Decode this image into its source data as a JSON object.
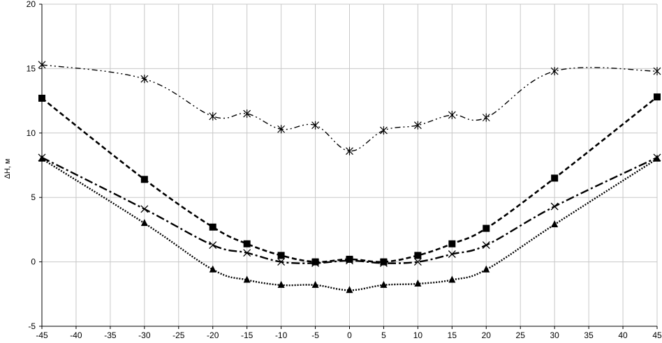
{
  "chart_data": {
    "type": "line",
    "title": "",
    "xlabel": "",
    "ylabel": "ΔH, м",
    "xlim": [
      -45,
      45
    ],
    "ylim": [
      -5,
      20
    ],
    "grid": true,
    "x_ticks": [
      -45,
      -40,
      -35,
      -30,
      -25,
      -20,
      -15,
      -10,
      -5,
      0,
      5,
      10,
      15,
      20,
      25,
      30,
      35,
      40,
      45
    ],
    "y_ticks": [
      -5,
      0,
      5,
      10,
      15,
      20
    ],
    "series": [
      {
        "marker": "asterisk",
        "line_style": "dash-dot-dot",
        "color": "#000000",
        "x": [
          -45,
          -30,
          -20,
          -15,
          -10,
          -5,
          0,
          5,
          10,
          15,
          20,
          30,
          45
        ],
        "y": [
          15.3,
          14.2,
          11.3,
          11.5,
          10.3,
          10.6,
          8.6,
          10.2,
          10.6,
          11.4,
          11.2,
          14.8,
          14.8
        ]
      },
      {
        "marker": "square",
        "line_style": "dashed",
        "color": "#000000",
        "x": [
          -45,
          -30,
          -20,
          -15,
          -10,
          -5,
          0,
          5,
          10,
          15,
          20,
          30,
          45
        ],
        "y": [
          12.7,
          6.4,
          2.7,
          1.4,
          0.5,
          0.0,
          0.2,
          0.0,
          0.5,
          1.4,
          2.6,
          6.5,
          12.8
        ]
      },
      {
        "marker": "x",
        "line_style": "dash-dot",
        "color": "#000000",
        "x": [
          -45,
          -30,
          -20,
          -15,
          -10,
          -5,
          0,
          5,
          10,
          15,
          20,
          30,
          45
        ],
        "y": [
          8.1,
          4.1,
          1.3,
          0.7,
          0.0,
          -0.1,
          0.1,
          -0.1,
          0.0,
          0.6,
          1.3,
          4.3,
          8.1
        ]
      },
      {
        "marker": "triangle",
        "line_style": "dotted",
        "color": "#000000",
        "x": [
          -45,
          -30,
          -20,
          -15,
          -10,
          -5,
          0,
          5,
          10,
          15,
          20,
          30,
          45
        ],
        "y": [
          8.0,
          3.0,
          -0.6,
          -1.4,
          -1.8,
          -1.8,
          -2.2,
          -1.8,
          -1.7,
          -1.4,
          -0.6,
          2.9,
          8.0
        ]
      }
    ]
  }
}
